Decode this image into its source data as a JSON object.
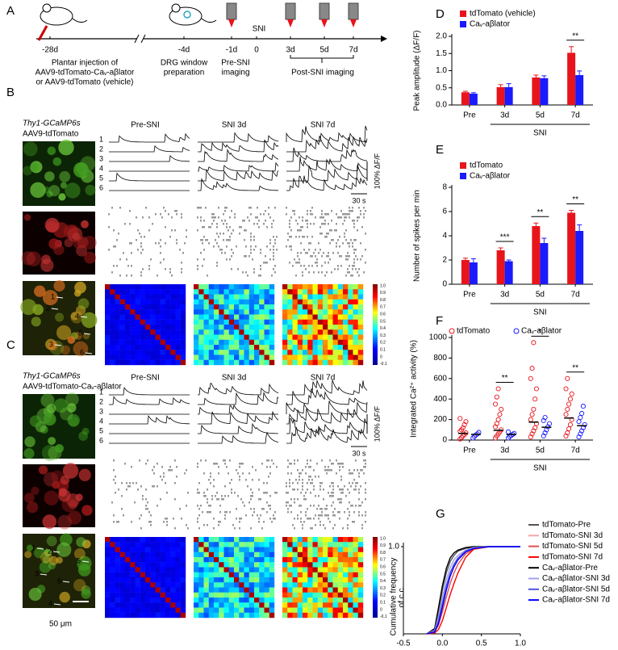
{
  "panel_a": {
    "label": "A",
    "time_points": [
      "-28d",
      "-4d",
      "-1d",
      "0",
      "3d",
      "5d",
      "7d"
    ],
    "sni": "SNI",
    "injection": [
      "Plantar injection of",
      "AAV9-tdTomato-Caᵥ-aβlator",
      "or AAV9-tdTomato (vehicle)"
    ],
    "window": [
      "DRG window",
      "preparation"
    ],
    "pre_imaging": [
      "Pre-SNI",
      "imaging"
    ],
    "post_imaging": "Post-SNI imaging"
  },
  "panel_b": {
    "label": "B",
    "reporter": "Thy1-GCaMP6s",
    "virus": "AAV9-tdTomato",
    "columns": [
      "Pre-SNI",
      "SNI 3d",
      "SNI 7d"
    ],
    "cells": [
      "1",
      "2",
      "3",
      "4",
      "5",
      "6"
    ],
    "scale_y": "100% ΔF/F",
    "scale_x": "30 s",
    "colorbar_ticks": [
      "1.0",
      "0.9",
      "0.8",
      "0.7",
      "0.6",
      "0.5",
      "0.4",
      "0.3",
      "0.2",
      "0.1",
      "0",
      "-0.1"
    ]
  },
  "panel_c": {
    "label": "C",
    "reporter": "Thy1-GCaMP6s",
    "virus": "AAV9-tdTomato-Caᵥ-aβlator",
    "columns": [
      "Pre-SNI",
      "SNI 3d",
      "SNI 7d"
    ],
    "cells": [
      "1",
      "2",
      "3",
      "4",
      "5",
      "6"
    ],
    "scale_y": "100% ΔF/F",
    "scale_x": "30 s",
    "scale_bar": "50 μm",
    "colorbar_ticks": [
      "1.0",
      "0.9",
      "0.8",
      "0.7",
      "0.6",
      "0.5",
      "0.4",
      "0.3",
      "0.2",
      "0.1",
      "0",
      "-0.1"
    ]
  },
  "chart_data": [
    {
      "panel_label": "D",
      "type": "bar",
      "ylabel": "Peak amplitude (ΔF/F)",
      "categories": [
        "Pre",
        "3d",
        "5d",
        "7d"
      ],
      "group_label": "SNI",
      "series": [
        {
          "name": "tdTomato (vehicle)",
          "color": "#e8141b",
          "values": [
            0.37,
            0.52,
            0.8,
            1.52
          ],
          "errors": [
            0.03,
            0.07,
            0.07,
            0.18
          ]
        },
        {
          "name": "Caᵥ-aβlator",
          "color": "#1a1aff",
          "values": [
            0.33,
            0.52,
            0.78,
            0.87
          ],
          "errors": [
            0.03,
            0.1,
            0.07,
            0.12
          ]
        }
      ],
      "ylim": [
        0,
        2
      ],
      "yticks": [
        {
          "value": 0,
          "label": "0.0"
        },
        0.5,
        {
          "value": 1,
          "label": "1.0"
        },
        1.5,
        {
          "value": 2,
          "label": "2.0"
        }
      ],
      "annotations": [
        null,
        null,
        null,
        "**"
      ]
    },
    {
      "panel_label": "E",
      "type": "bar",
      "ylabel": "Number of spikes per min",
      "categories": [
        "Pre",
        "3d",
        "5d",
        "7d"
      ],
      "group_label": "SNI",
      "series": [
        {
          "name": "tdTomato",
          "color": "#e8141b",
          "values": [
            2.0,
            2.8,
            4.8,
            5.9
          ],
          "errors": [
            0.15,
            0.2,
            0.25,
            0.2
          ]
        },
        {
          "name": "Caᵥ-aβlator",
          "color": "#1a1aff",
          "values": [
            1.8,
            1.9,
            3.4,
            4.4
          ],
          "errors": [
            0.3,
            0.1,
            0.4,
            0.5
          ]
        }
      ],
      "ylim": [
        0,
        8
      ],
      "yticks": [
        0,
        2,
        4,
        6,
        8
      ],
      "annotations": [
        null,
        "***",
        "**",
        "**"
      ]
    },
    {
      "panel_label": "F",
      "type": "strip",
      "ylabel": "Integrated Ca²⁺ activity (%)",
      "categories": [
        "Pre",
        "3d",
        "5d",
        "7d"
      ],
      "group_label": "SNI",
      "series": [
        {
          "name": "tdTomato",
          "color": "#e8141b",
          "means": [
            65,
            95,
            175,
            215
          ],
          "values": [
            [
              10,
              25,
              40,
              55,
              70,
              85,
              100,
              120,
              150,
              180,
              210
            ],
            [
              20,
              40,
              60,
              80,
              100,
              130,
              160,
              200,
              250,
              300,
              350,
              420,
              500
            ],
            [
              30,
              60,
              90,
              120,
              160,
              200,
              250,
              300,
              400,
              500,
              600,
              700,
              950
            ],
            [
              40,
              70,
              110,
              150,
              200,
              250,
              300,
              350,
              400,
              450,
              500,
              600
            ]
          ]
        },
        {
          "name": "Caᵥ-aβlator",
          "color": "#1a1aff",
          "means": [
            55,
            55,
            125,
            140
          ],
          "values": [
            [
              20,
              35,
              50,
              60,
              75
            ],
            [
              20,
              35,
              45,
              55,
              65,
              80
            ],
            [
              40,
              70,
              100,
              130,
              160,
              190,
              220
            ],
            [
              30,
              60,
              90,
              120,
              150,
              180,
              220,
              260,
              330
            ]
          ]
        }
      ],
      "ylim": [
        0,
        1000
      ],
      "yticks": [
        0,
        200,
        400,
        600,
        800,
        1000
      ],
      "annotations": [
        null,
        "**",
        "*",
        "**"
      ]
    },
    {
      "panel_label": "G",
      "type": "line",
      "ylabel": [
        "Cumulative frequency",
        "of c.c."
      ],
      "x": [
        -0.2,
        -0.1,
        -0.05,
        0,
        0.05,
        0.1,
        0.15,
        0.2,
        0.3,
        0.4,
        0.6,
        1.0
      ],
      "series": [
        {
          "name": "tdTomato-Pre",
          "color": "#555555",
          "values": [
            0,
            0.05,
            0.25,
            0.5,
            0.7,
            0.83,
            0.9,
            0.95,
            0.98,
            0.99,
            1,
            1
          ]
        },
        {
          "name": "tdTomato-SNI 3d",
          "color": "#f4a6a6",
          "values": [
            0,
            0.03,
            0.15,
            0.35,
            0.55,
            0.7,
            0.8,
            0.87,
            0.95,
            0.98,
            1,
            1
          ]
        },
        {
          "name": "tdTomato-SNI 5d",
          "color": "#e05050",
          "values": [
            0,
            0.02,
            0.1,
            0.25,
            0.42,
            0.58,
            0.7,
            0.8,
            0.92,
            0.97,
            1,
            1
          ]
        },
        {
          "name": "tdTomato-SNI 7d",
          "color": "#ff0000",
          "values": [
            0,
            0.01,
            0.05,
            0.15,
            0.3,
            0.45,
            0.58,
            0.7,
            0.88,
            0.97,
            1,
            1
          ]
        },
        {
          "name": "Caᵥ-aβlator-Pre",
          "color": "#000000",
          "values": [
            0,
            0.06,
            0.3,
            0.55,
            0.75,
            0.87,
            0.93,
            0.96,
            0.99,
            1,
            1,
            1
          ]
        },
        {
          "name": "Caᵥ-aβlator-SNI 3d",
          "color": "#a0a0ee",
          "values": [
            0,
            0.04,
            0.2,
            0.42,
            0.62,
            0.76,
            0.85,
            0.9,
            0.96,
            0.99,
            1,
            1
          ]
        },
        {
          "name": "Caᵥ-aβlator-SNI 5d",
          "color": "#5050dd",
          "values": [
            0,
            0.03,
            0.15,
            0.35,
            0.55,
            0.7,
            0.8,
            0.87,
            0.95,
            0.98,
            1,
            1
          ]
        },
        {
          "name": "Caᵥ-aβlator-SNI 7d",
          "color": "#0000ff",
          "values": [
            0,
            0.02,
            0.12,
            0.3,
            0.5,
            0.66,
            0.77,
            0.85,
            0.94,
            0.98,
            1,
            1
          ]
        }
      ],
      "xlim": [
        -0.5,
        1.0
      ],
      "xticks": [
        -0.5,
        {
          "value": 0,
          "label": "0.0"
        },
        0.5,
        {
          "value": 1,
          "label": "1.0"
        }
      ],
      "ylim": [
        0,
        1
      ],
      "yticks": [
        {
          "value": 1,
          "label": "1.0"
        }
      ]
    }
  ]
}
